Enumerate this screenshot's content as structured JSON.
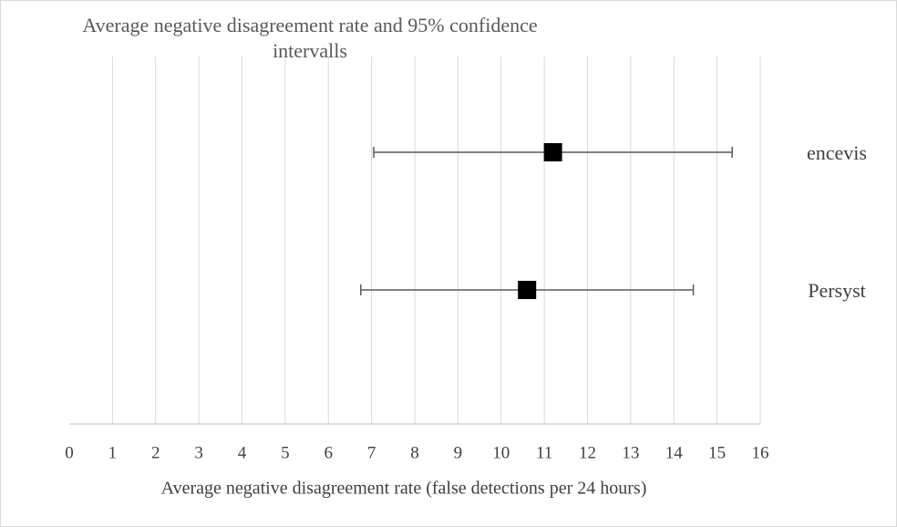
{
  "chart_data": {
    "type": "errorbar",
    "title": "Average negative disagreement rate and 95% confidence intervalls",
    "x_label": "Average negative disagreement rate (false detections per 24 hours)",
    "categories": [
      "encevis",
      "Persyst"
    ],
    "values": [
      11.2,
      10.6
    ],
    "errors": [
      4.15,
      3.85
    ],
    "color": "#000000",
    "error_color": "#595959",
    "xlim": [
      0,
      16
    ],
    "xticks": [
      0,
      1,
      2,
      3,
      4,
      5,
      6,
      7,
      8,
      9,
      10,
      11,
      12,
      13,
      14,
      15,
      16
    ],
    "grid": true
  }
}
